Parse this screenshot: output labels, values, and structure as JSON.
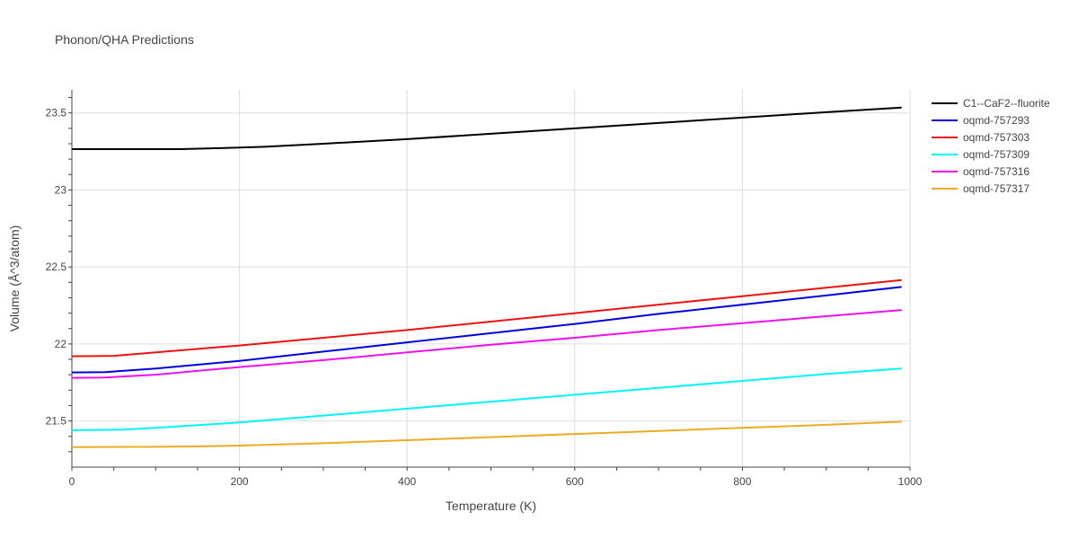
{
  "chart_data": {
    "type": "line",
    "title": "Phonon/QHA Predictions",
    "xlabel": "Temperature (K)",
    "ylabel": "Volume (Å^3/atom)",
    "xlim": [
      0,
      1000
    ],
    "ylim": [
      21.2,
      23.65
    ],
    "x_ticks": [
      0,
      200,
      400,
      600,
      800,
      1000
    ],
    "y_ticks": [
      21.5,
      22,
      22.5,
      23,
      23.5
    ],
    "x_tick_labels": [
      "0",
      "200",
      "400",
      "600",
      "800",
      "1000"
    ],
    "y_tick_labels": [
      "21.5",
      "22",
      "22.5",
      "23",
      "23.5"
    ],
    "grid": true,
    "legend_position": "top-right-outside",
    "series": [
      {
        "name": "C1--CaF2--fluorite",
        "color": "#000000",
        "x": [
          0,
          50,
          100,
          130,
          200,
          230,
          300,
          400,
          500,
          600,
          700,
          800,
          900,
          990
        ],
        "y": [
          23.265,
          23.265,
          23.265,
          23.265,
          23.275,
          23.28,
          23.3,
          23.33,
          23.365,
          23.4,
          23.435,
          23.47,
          23.505,
          23.535
        ]
      },
      {
        "name": "oqmd-757293",
        "color": "#0000dd",
        "x": [
          0,
          40,
          100,
          200,
          300,
          400,
          500,
          600,
          700,
          800,
          900,
          990
        ],
        "y": [
          21.815,
          21.817,
          21.84,
          21.89,
          21.95,
          22.01,
          22.07,
          22.13,
          22.195,
          22.255,
          22.315,
          22.37
        ]
      },
      {
        "name": "oqmd-757303",
        "color": "#ee1111",
        "x": [
          0,
          50,
          100,
          200,
          300,
          400,
          500,
          600,
          700,
          800,
          900,
          990
        ],
        "y": [
          21.92,
          21.923,
          21.945,
          21.99,
          22.04,
          22.09,
          22.145,
          22.2,
          22.255,
          22.31,
          22.365,
          22.415
        ]
      },
      {
        "name": "oqmd-757309",
        "color": "#00f5f5",
        "x": [
          0,
          60,
          100,
          200,
          300,
          400,
          500,
          600,
          700,
          800,
          900,
          990
        ],
        "y": [
          21.44,
          21.443,
          21.455,
          21.49,
          21.535,
          21.58,
          21.625,
          21.67,
          21.715,
          21.76,
          21.805,
          21.84
        ]
      },
      {
        "name": "oqmd-757316",
        "color": "#ee11ee",
        "x": [
          0,
          40,
          100,
          200,
          300,
          400,
          500,
          600,
          700,
          800,
          900,
          990
        ],
        "y": [
          21.78,
          21.782,
          21.8,
          21.85,
          21.895,
          21.945,
          21.995,
          22.04,
          22.09,
          22.135,
          22.18,
          22.22
        ]
      },
      {
        "name": "oqmd-757317",
        "color": "#eeaa22",
        "x": [
          0,
          100,
          150,
          200,
          300,
          400,
          500,
          600,
          700,
          800,
          900,
          990
        ],
        "y": [
          21.33,
          21.332,
          21.335,
          21.34,
          21.355,
          21.375,
          21.395,
          21.415,
          21.435,
          21.455,
          21.475,
          21.495
        ]
      }
    ]
  }
}
